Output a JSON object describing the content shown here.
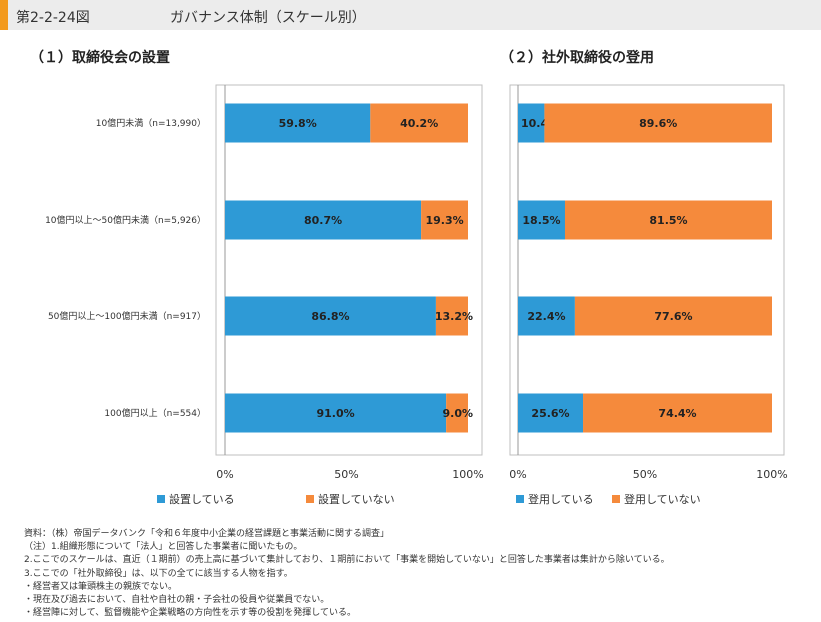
{
  "header": {
    "figure_label": "第2-2-24図",
    "title": "ガバナンス体制（スケール別）"
  },
  "chart_data": [
    {
      "type": "bar",
      "orientation": "horizontal",
      "stacked": true,
      "title": "（１）取締役会の設置",
      "categories": [
        "10億円未満（n=13,990）",
        "10億円以上～50億円未満（n=5,926）",
        "50億円以上～100億円未満（n=917）",
        "100億円以上（n=554）"
      ],
      "series": [
        {
          "name": "設置している",
          "values": [
            59.8,
            80.7,
            86.8,
            91.0
          ],
          "labels": [
            "59.8%",
            "80.7%",
            "86.8%",
            "91.0%"
          ],
          "color": "#2e9ad6"
        },
        {
          "name": "設置していない",
          "values": [
            40.2,
            19.3,
            13.2,
            9.0
          ],
          "labels": [
            "40.2%",
            "19.3%",
            "13.2%",
            "9.0%"
          ],
          "color": "#f58a3c"
        }
      ],
      "xlim": [
        0,
        100
      ],
      "xticks": [
        "0%",
        "50%",
        "100%"
      ],
      "legend_position": "bottom"
    },
    {
      "type": "bar",
      "orientation": "horizontal",
      "stacked": true,
      "title": "（２）社外取締役の登用",
      "categories": [
        "10億円未満（n=13,990）",
        "10億円以上～50億円未満（n=5,926）",
        "50億円以上～100億円未満（n=917）",
        "100億円以上（n=554）"
      ],
      "series": [
        {
          "name": "登用している",
          "values": [
            10.4,
            18.5,
            22.4,
            25.6
          ],
          "labels": [
            "10.4%",
            "18.5%",
            "22.4%",
            "25.6%"
          ],
          "color": "#2e9ad6"
        },
        {
          "name": "登用していない",
          "values": [
            89.6,
            81.5,
            77.6,
            74.4
          ],
          "labels": [
            "89.6%",
            "81.5%",
            "77.6%",
            "74.4%"
          ],
          "color": "#f58a3c"
        }
      ],
      "xlim": [
        0,
        100
      ],
      "xticks": [
        "0%",
        "50%",
        "100%"
      ],
      "legend_position": "bottom"
    }
  ],
  "notes": [
    "資料：（株）帝国データバンク「令和６年度中小企業の経営課題と事業活動に関する調査」",
    "（注）1.組織形態について「法人」と回答した事業者に聞いたもの。",
    "2.ここでのスケールは、直近（１期前）の売上高に基づいて集計しており、１期前において「事業を開始していない」と回答した事業者は集計から除いている。",
    "3.ここでの「社外取締役」は、以下の全てに該当する人物を指す。",
    "・経営者又は筆頭株主の親族でない。",
    "・現在及び過去において、自社や自社の親・子会社の役員や従業員でない。",
    "・経営陣に対して、監督機能や企業戦略の方向性を示す等の役割を発揮している。"
  ]
}
